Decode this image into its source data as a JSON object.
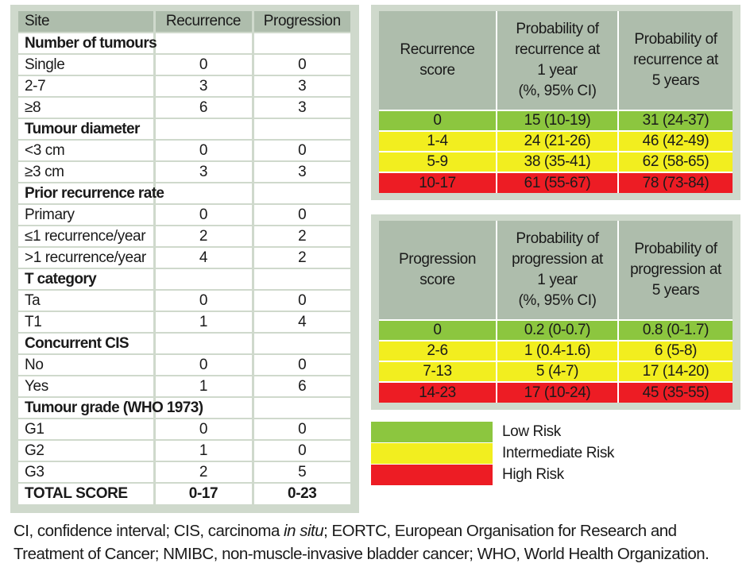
{
  "colors": {
    "panel_bg": "#cfd9cc",
    "header_bg": "#aebdac",
    "low": "#8cc63f",
    "intermediate": "#f2ee1f",
    "high": "#ed1c24"
  },
  "scoring_table": {
    "headers": [
      "Site",
      "Recurrence",
      "Progression"
    ],
    "rows": [
      {
        "type": "section",
        "label": "Number of tumours"
      },
      {
        "type": "data",
        "label": "Single",
        "recurrence": "0",
        "progression": "0"
      },
      {
        "type": "data",
        "label": "2-7",
        "recurrence": "3",
        "progression": "3"
      },
      {
        "type": "data",
        "label": "≥8",
        "recurrence": "6",
        "progression": "3"
      },
      {
        "type": "section",
        "label": "Tumour diameter"
      },
      {
        "type": "data",
        "label": "<3 cm",
        "recurrence": "0",
        "progression": "0"
      },
      {
        "type": "data",
        "label": "≥3 cm",
        "recurrence": "3",
        "progression": "3"
      },
      {
        "type": "section",
        "label": "Prior recurrence rate"
      },
      {
        "type": "data",
        "label": "Primary",
        "recurrence": "0",
        "progression": "0"
      },
      {
        "type": "data",
        "label": "≤1 recurrence/year",
        "recurrence": "2",
        "progression": "2"
      },
      {
        "type": "data",
        "label": ">1 recurrence/year",
        "recurrence": "4",
        "progression": "2"
      },
      {
        "type": "section",
        "label": "T category"
      },
      {
        "type": "data",
        "label": "Ta",
        "recurrence": "0",
        "progression": "0"
      },
      {
        "type": "data",
        "label": "T1",
        "recurrence": "1",
        "progression": "4"
      },
      {
        "type": "section",
        "label": "Concurrent CIS"
      },
      {
        "type": "data",
        "label": "No",
        "recurrence": "0",
        "progression": "0"
      },
      {
        "type": "data",
        "label": "Yes",
        "recurrence": "1",
        "progression": "6"
      },
      {
        "type": "section",
        "label": "Tumour grade (WHO 1973)"
      },
      {
        "type": "data",
        "label": "G1",
        "recurrence": "0",
        "progression": "0"
      },
      {
        "type": "data",
        "label": "G2",
        "recurrence": "1",
        "progression": "0"
      },
      {
        "type": "data",
        "label": "G3",
        "recurrence": "2",
        "progression": "5"
      },
      {
        "type": "total",
        "label": "TOTAL SCORE",
        "recurrence": "0-17",
        "progression": "0-23"
      }
    ]
  },
  "recurrence_table": {
    "headers": [
      [
        "Recurrence",
        "score"
      ],
      [
        "Probability of",
        "recurrence at",
        "1 year",
        "(%, 95% CI)"
      ],
      [
        "Probability of",
        "recurrence at",
        "5 years"
      ]
    ],
    "rows": [
      {
        "risk": "low",
        "score": "0",
        "one_year": "15 (10-19)",
        "five_years": "31 (24-37)"
      },
      {
        "risk": "intermediate",
        "score": "1-4",
        "one_year": "24 (21-26)",
        "five_years": "46 (42-49)"
      },
      {
        "risk": "intermediate",
        "score": "5-9",
        "one_year": "38 (35-41)",
        "five_years": "62 (58-65)"
      },
      {
        "risk": "high",
        "score": "10-17",
        "one_year": "61 (55-67)",
        "five_years": "78 (73-84)"
      }
    ]
  },
  "progression_table": {
    "headers": [
      [
        "Progression",
        "score"
      ],
      [
        "Probability of",
        "progression at",
        "1 year",
        "(%, 95% CI)"
      ],
      [
        "Probability of",
        "progression at",
        "5 years"
      ]
    ],
    "rows": [
      {
        "risk": "low",
        "score": "0",
        "one_year": "0.2 (0-0.7)",
        "five_years": "0.8 (0-1.7)"
      },
      {
        "risk": "intermediate",
        "score": "2-6",
        "one_year": "1 (0.4-1.6)",
        "five_years": "6 (5-8)"
      },
      {
        "risk": "intermediate",
        "score": "7-13",
        "one_year": "5 (4-7)",
        "five_years": "17 (14-20)"
      },
      {
        "risk": "high",
        "score": "14-23",
        "one_year": "17 (10-24)",
        "five_years": "45 (35-55)"
      }
    ]
  },
  "legend": [
    {
      "risk": "low",
      "label": "Low Risk"
    },
    {
      "risk": "intermediate",
      "label": "Intermediate Risk"
    },
    {
      "risk": "high",
      "label": "High Risk"
    }
  ],
  "footnote": {
    "part1": "CI, confidence interval; CIS, carcinoma ",
    "italic": "in situ",
    "part2": "; EORTC, European Organisation for Research and Treatment of Cancer; NMIBC, non-muscle-invasive bladder cancer; WHO, World Health Organization."
  }
}
